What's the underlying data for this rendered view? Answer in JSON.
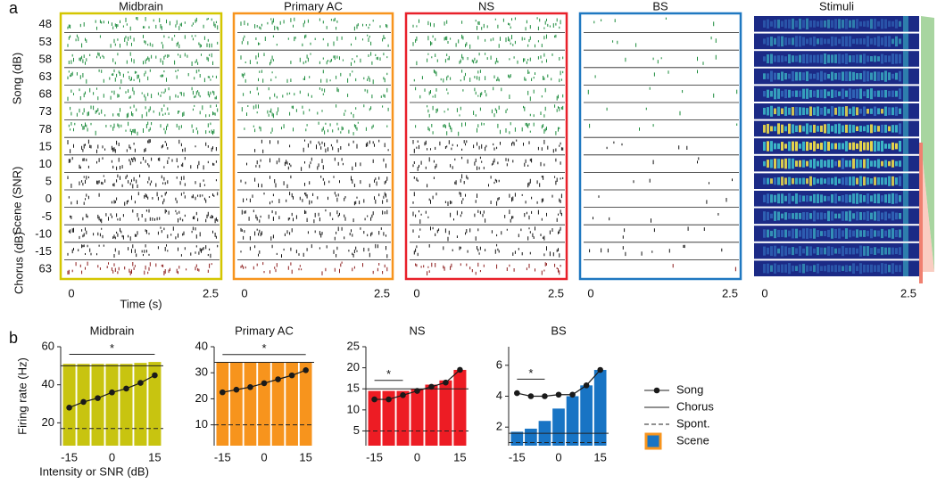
{
  "panel_a": {
    "label": "a",
    "columns": [
      {
        "title": "Midbrain",
        "color": "#d4c600",
        "density": 0.55
      },
      {
        "title": "Primary AC",
        "color": "#f7941d",
        "density": 0.4
      },
      {
        "title": "NS",
        "color": "#e8202a",
        "density": 0.4
      },
      {
        "title": "BS",
        "color": "#1f78c1",
        "density": 0.04
      },
      {
        "title": "Stimuli"
      }
    ],
    "song_label": "Song (dB)",
    "song_levels": [
      48,
      53,
      58,
      63,
      68,
      73,
      78
    ],
    "scene_label": "Scene (SNR)",
    "scene_snrs": [
      15,
      10,
      5,
      0,
      -5,
      -10,
      -15
    ],
    "chorus_label": "Chorus (dB)",
    "chorus_levels": [
      63
    ],
    "time_label": "Time (s)",
    "time_ticks": [
      0,
      2.5
    ],
    "song_color": "#1a8a3a",
    "scene_color": "#111111",
    "chorus_color": "#8b1a1a"
  },
  "panel_b_label": "b",
  "chart_data": [
    {
      "type": "bar",
      "title": "Midbrain",
      "x": [
        -15,
        -10,
        -5,
        0,
        5,
        10,
        15
      ],
      "xlim": [
        -18,
        18
      ],
      "xticks": [
        -15,
        0,
        15
      ],
      "ylim": [
        8,
        60
      ],
      "yticks": [
        20,
        40,
        60
      ],
      "ylabel": "Firing rate (Hz)",
      "xlabel": "Intensity or SNR (dB)",
      "series": [
        {
          "name": "Scene",
          "color": "#c8c410",
          "values": [
            51,
            51,
            51,
            51,
            51,
            51.5,
            52
          ]
        },
        {
          "name": "Song",
          "type": "line",
          "color": "#1a1a1a",
          "values": [
            28,
            31,
            33,
            36,
            38,
            41,
            45
          ]
        }
      ],
      "reference_lines": [
        {
          "name": "Chorus",
          "style": "solid",
          "value": 50
        },
        {
          "name": "Spont.",
          "style": "dashed",
          "value": 17
        }
      ],
      "significance": {
        "text": "*",
        "x": [
          -15,
          15
        ],
        "y": 56
      }
    },
    {
      "type": "bar",
      "title": "Primary AC",
      "x": [
        -15,
        -10,
        -5,
        0,
        5,
        10,
        15
      ],
      "xlim": [
        -18,
        18
      ],
      "xticks": [
        -15,
        0,
        15
      ],
      "ylim": [
        2,
        40
      ],
      "yticks": [
        10,
        20,
        30,
        40
      ],
      "series": [
        {
          "name": "Scene",
          "color": "#f7941d",
          "values": [
            34,
            34,
            34,
            34,
            34,
            34,
            34
          ]
        },
        {
          "name": "Song",
          "type": "line",
          "color": "#1a1a1a",
          "values": [
            22.5,
            23.5,
            24.5,
            26,
            27.5,
            29,
            31
          ]
        }
      ],
      "reference_lines": [
        {
          "name": "Chorus",
          "style": "solid",
          "value": 34
        },
        {
          "name": "Spont.",
          "style": "dashed",
          "value": 10
        }
      ],
      "significance": {
        "text": "*",
        "x": [
          -15,
          15
        ],
        "y": 37
      }
    },
    {
      "type": "bar",
      "title": "NS",
      "x": [
        -15,
        -10,
        -5,
        0,
        5,
        10,
        15
      ],
      "xlim": [
        -18,
        18
      ],
      "xticks": [
        -15,
        0,
        15
      ],
      "ylim": [
        1.5,
        25
      ],
      "yticks": [
        5,
        10,
        15,
        20,
        25
      ],
      "series": [
        {
          "name": "Scene",
          "color": "#ed1c24",
          "values": [
            14.5,
            14.5,
            14.5,
            15,
            16,
            17,
            19.5
          ]
        },
        {
          "name": "Song",
          "type": "line",
          "color": "#1a1a1a",
          "values": [
            12.5,
            12.5,
            13.5,
            14.5,
            15.5,
            16.5,
            19.5
          ]
        }
      ],
      "reference_lines": [
        {
          "name": "Chorus",
          "style": "solid",
          "value": 15
        },
        {
          "name": "Spont.",
          "style": "dashed",
          "value": 5
        }
      ],
      "significance": {
        "text": "*",
        "x": [
          -15,
          -5
        ],
        "y": 17
      }
    },
    {
      "type": "bar",
      "title": "BS",
      "x": [
        -15,
        -10,
        -5,
        0,
        5,
        10,
        15
      ],
      "xlim": [
        -18,
        18
      ],
      "xticks": [
        -15,
        0,
        15
      ],
      "ylim": [
        0.8,
        7.2
      ],
      "yticks": [
        2,
        4,
        6
      ],
      "series": [
        {
          "name": "Scene",
          "color": "#1874c4",
          "values": [
            1.7,
            1.9,
            2.4,
            3.2,
            4.0,
            4.7,
            5.7
          ]
        },
        {
          "name": "Song",
          "type": "line",
          "color": "#1a1a1a",
          "values": [
            4.2,
            4.0,
            4.0,
            4.1,
            4.1,
            4.7,
            5.7
          ]
        }
      ],
      "reference_lines": [
        {
          "name": "Chorus",
          "style": "solid",
          "value": 1.6
        },
        {
          "name": "Spont.",
          "style": "dashed",
          "value": 1.0
        }
      ],
      "significance": {
        "text": "*",
        "x": [
          -15,
          -5
        ],
        "y": 5.1
      }
    }
  ]
}
